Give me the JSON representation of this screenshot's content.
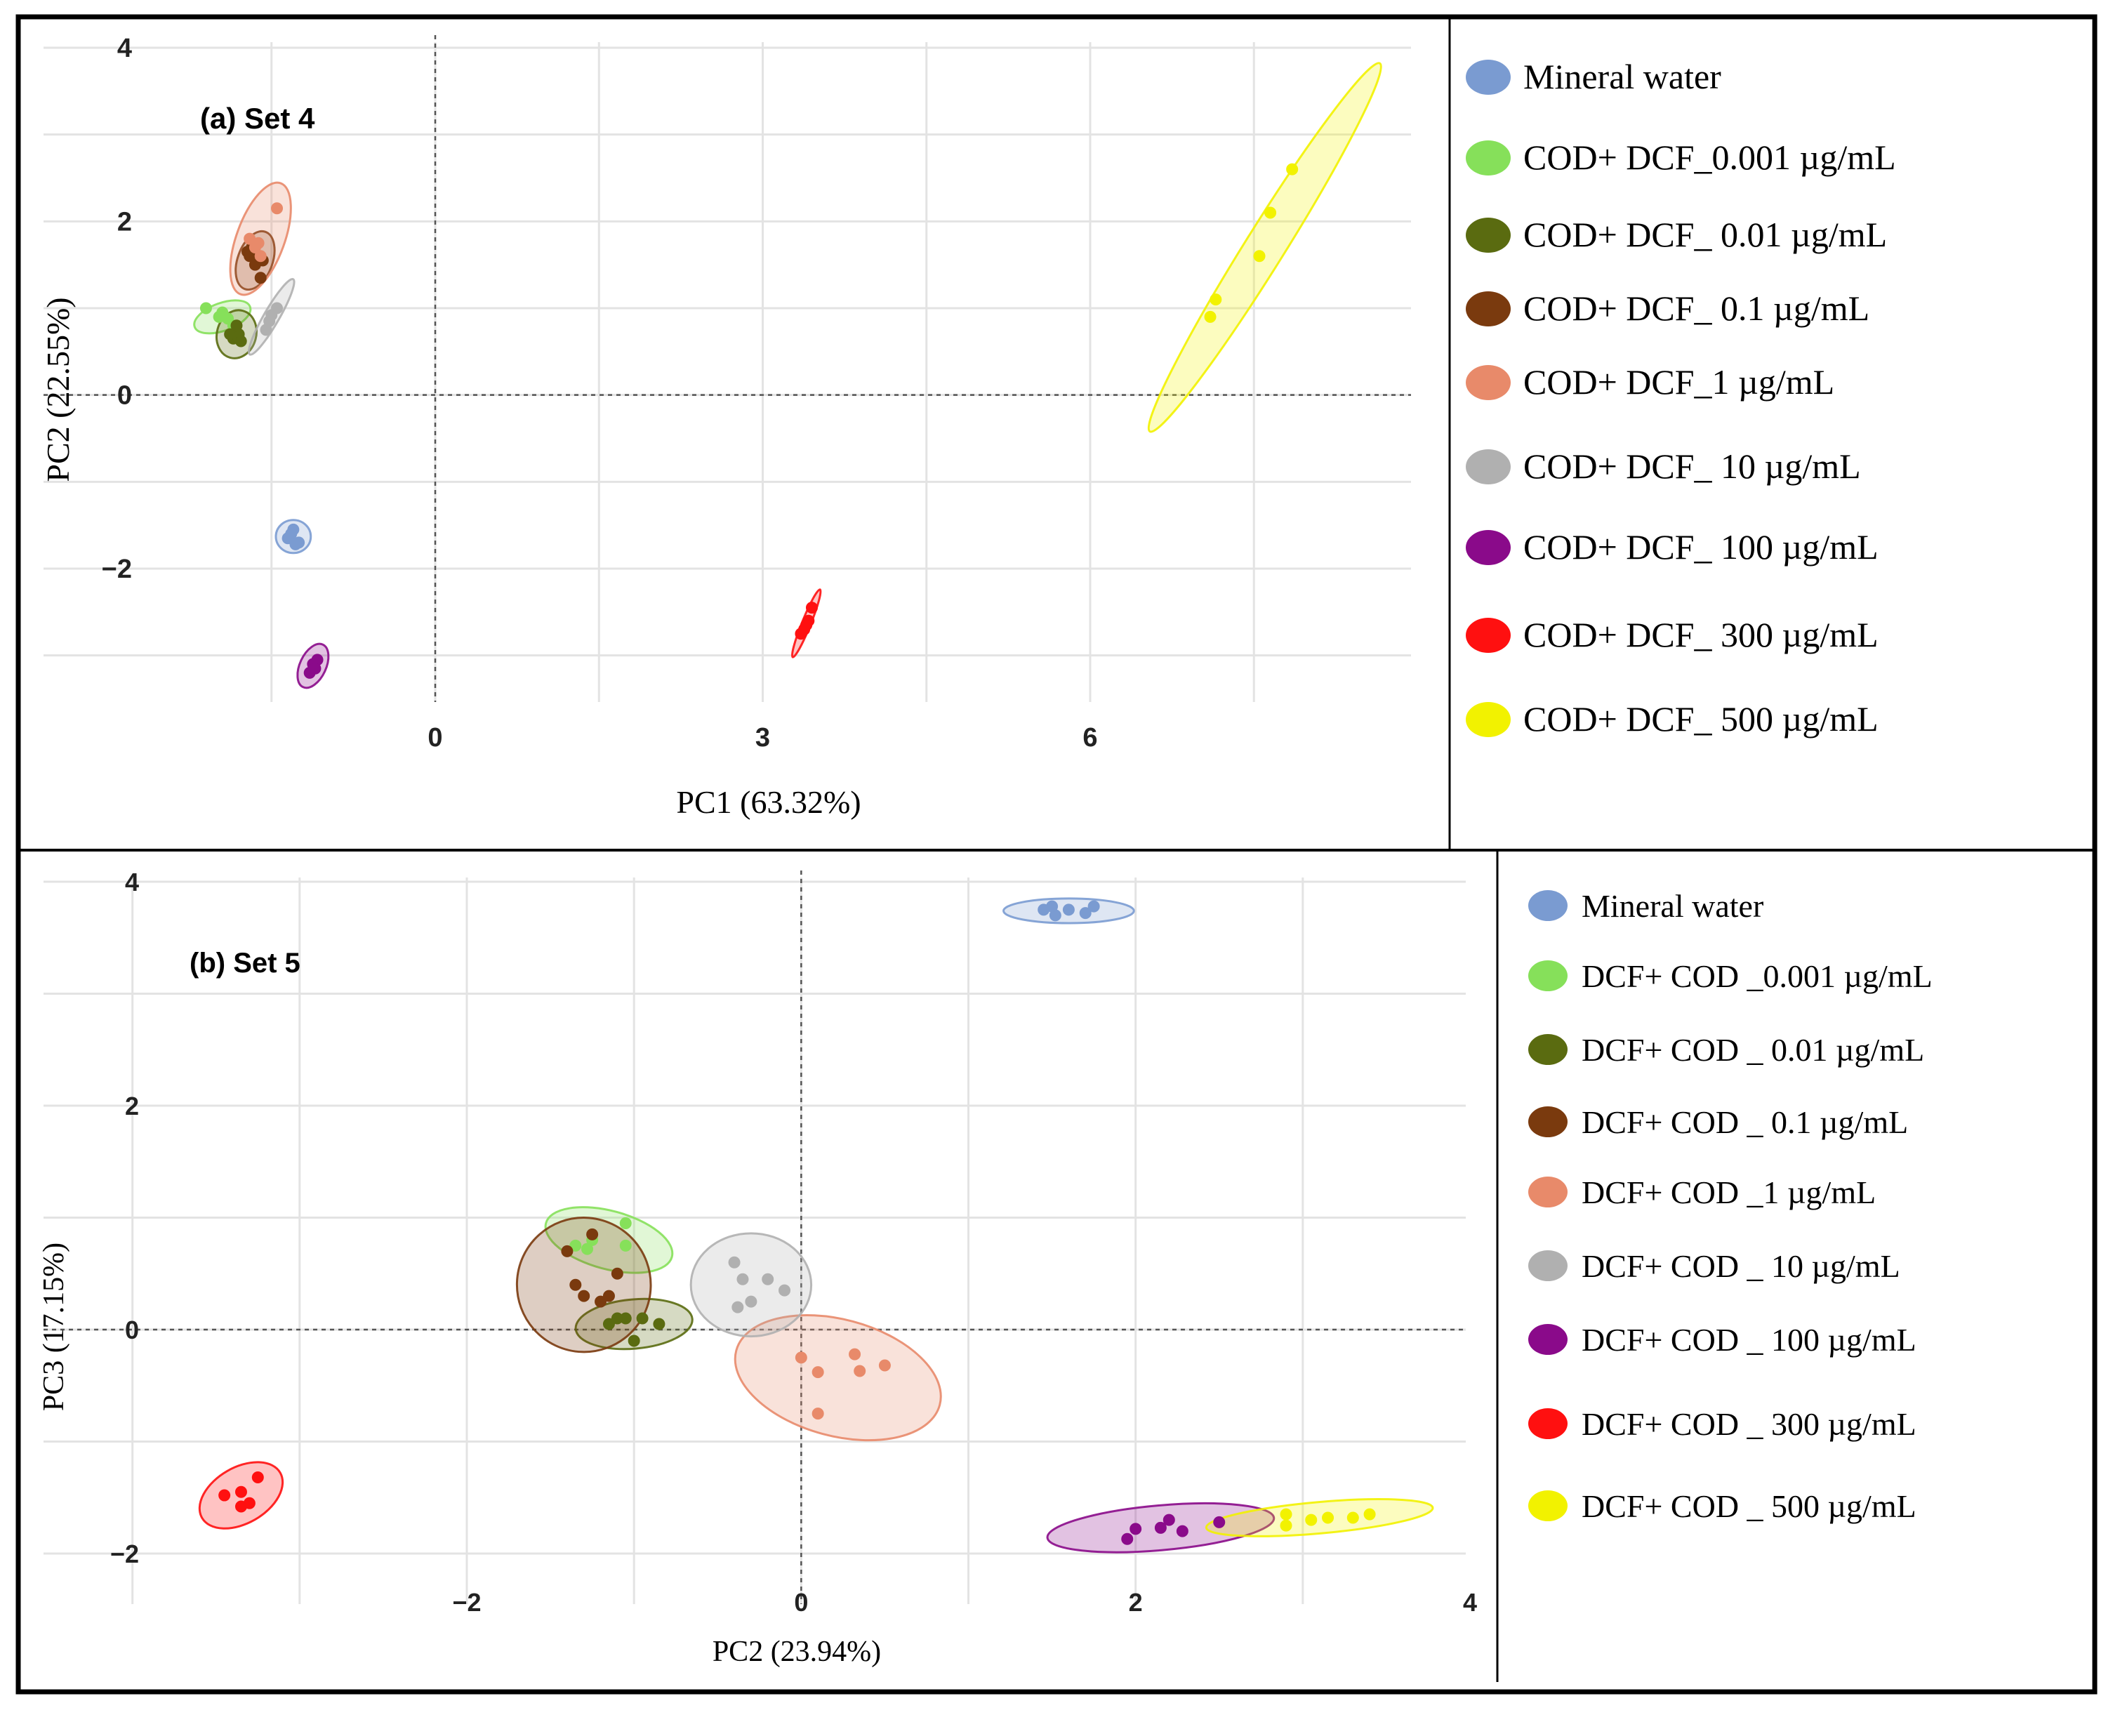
{
  "colors": {
    "mineral": "#7a9bd1",
    "c0001": "#86e05a",
    "c001": "#5a6b10",
    "c01": "#7a3a0e",
    "c1": "#e88a6a",
    "c10": "#b0b0b0",
    "c100": "#8a0a8a",
    "c300": "#ff1010",
    "c500": "#f2f200"
  },
  "chart_data": [
    {
      "type": "scatter",
      "panel_label": "(a) Set 4",
      "xlabel": "PC1 (63.32%)",
      "ylabel": "PC2 (22.55%)",
      "xlim": [
        -1.75,
        9.0
      ],
      "ylim": [
        -3.0,
        4.1
      ],
      "x_ticks": [
        0,
        3,
        6
      ],
      "x_tick_labels": [
        "0",
        "3",
        "6"
      ],
      "y_ticks": [
        -2,
        0,
        2,
        4
      ],
      "y_tick_labels": [
        "−2",
        "0",
        "2",
        "4"
      ],
      "legend": [
        "Mineral water",
        "COD+ DCF_0.001 µg/mL",
        "COD+ DCF_ 0.01 µg/mL",
        "COD+ DCF_ 0.1 µg/mL",
        "COD+ DCF_1 µg/mL",
        "COD+ DCF_ 10 µg/mL",
        "COD+ DCF_ 100 µg/mL",
        "COD+ DCF_ 300 µg/mL",
        "COD+ DCF_ 500 µg/mL"
      ],
      "series": [
        {
          "name": "Mineral water",
          "color_key": "mineral",
          "x": [
            -1.35,
            -1.3,
            -1.25,
            -1.32,
            -1.28
          ],
          "y": [
            -1.65,
            -1.55,
            -1.7,
            -1.6,
            -1.72
          ],
          "ellipse": {
            "cx": -1.3,
            "cy": -1.63,
            "rx": 0.16,
            "ry": 0.19,
            "angle": 0
          }
        },
        {
          "name": "COD+ DCF_0.001",
          "color_key": "c0001",
          "x": [
            -2.1,
            -1.95,
            -1.85,
            -1.9,
            -1.98
          ],
          "y": [
            1.0,
            0.95,
            0.8,
            0.88,
            0.9
          ],
          "ellipse": {
            "cx": -1.95,
            "cy": 0.9,
            "rx": 0.27,
            "ry": 0.16,
            "angle": -20
          }
        },
        {
          "name": "COD+ DCF_ 0.01",
          "color_key": "c001",
          "x": [
            -1.85,
            -1.8,
            -1.82,
            -1.78,
            -1.88
          ],
          "y": [
            0.65,
            0.7,
            0.8,
            0.62,
            0.7
          ],
          "ellipse": {
            "cx": -1.82,
            "cy": 0.7,
            "rx": 0.18,
            "ry": 0.28,
            "angle": 15
          }
        },
        {
          "name": "COD+ DCF_ 0.1",
          "color_key": "c01",
          "x": [
            -1.7,
            -1.65,
            -1.6,
            -1.68,
            -1.58,
            -1.72
          ],
          "y": [
            1.6,
            1.5,
            1.35,
            1.7,
            1.55,
            1.65
          ],
          "ellipse": {
            "cx": -1.65,
            "cy": 1.55,
            "rx": 0.16,
            "ry": 0.35,
            "angle": 20
          }
        },
        {
          "name": "COD+ DCF_1",
          "color_key": "c1",
          "x": [
            -1.45,
            -1.65,
            -1.7,
            -1.6,
            -1.62
          ],
          "y": [
            2.15,
            1.7,
            1.8,
            1.6,
            1.75
          ],
          "ellipse": {
            "cx": -1.6,
            "cy": 1.8,
            "rx": 0.22,
            "ry": 0.68,
            "angle": 20
          }
        },
        {
          "name": "COD+ DCF_ 10",
          "color_key": "c10",
          "x": [
            -1.45,
            -1.5,
            -1.52,
            -1.55
          ],
          "y": [
            1.0,
            0.92,
            0.85,
            0.75
          ],
          "ellipse": {
            "cx": -1.5,
            "cy": 0.9,
            "rx": 0.07,
            "ry": 0.5,
            "angle": 30
          }
        },
        {
          "name": "COD+ DCF_ 100",
          "color_key": "c100",
          "x": [
            -1.12,
            -1.08,
            -1.15,
            -1.1
          ],
          "y": [
            -3.1,
            -3.05,
            -3.2,
            -3.15
          ],
          "ellipse": {
            "cx": -1.12,
            "cy": -3.12,
            "rx": 0.12,
            "ry": 0.27,
            "angle": 25
          }
        },
        {
          "name": "COD+ DCF_ 300",
          "color_key": "c300",
          "x": [
            3.35,
            3.38,
            3.42,
            3.45,
            3.4
          ],
          "y": [
            -2.75,
            -2.7,
            -2.6,
            -2.45,
            -2.65
          ],
          "ellipse": {
            "cx": 3.4,
            "cy": -2.63,
            "rx": 0.04,
            "ry": 0.42,
            "angle": 22
          }
        },
        {
          "name": "COD+ DCF_ 500",
          "color_key": "c500",
          "x": [
            7.1,
            7.15,
            7.55,
            7.65,
            7.85
          ],
          "y": [
            0.9,
            1.1,
            1.6,
            2.1,
            2.6
          ],
          "ellipse": {
            "cx": 7.6,
            "cy": 1.7,
            "rx": 0.18,
            "ry": 2.5,
            "angle": 32
          }
        }
      ]
    },
    {
      "type": "scatter",
      "panel_label": "(b) Set 5",
      "xlabel": "PC2 (23.94%)",
      "ylabel": "PC3 (17.15%)",
      "xlim": [
        -4.0,
        4.0
      ],
      "ylim": [
        -2.1,
        4.0
      ],
      "x_ticks": [
        -2,
        0,
        2,
        4
      ],
      "x_tick_labels": [
        "−2",
        "0",
        "2",
        "4"
      ],
      "y_ticks": [
        -2,
        0,
        2,
        4
      ],
      "y_tick_labels": [
        "−2",
        "0",
        "2",
        "4"
      ],
      "legend": [
        "Mineral water",
        "DCF+ COD _0.001 µg/mL",
        "DCF+ COD _ 0.01 µg/mL",
        "DCF+ COD _ 0.1 µg/mL",
        "DCF+ COD _1 µg/mL",
        "DCF+ COD _ 10 µg/mL",
        "DCF+ COD _ 100 µg/mL",
        "DCF+ COD _ 300 µg/mL",
        "DCF+ COD _ 500 µg/mL"
      ],
      "series": [
        {
          "name": "Mineral water",
          "color_key": "mineral",
          "x": [
            1.45,
            1.52,
            1.6,
            1.7,
            1.75,
            1.5
          ],
          "y": [
            3.75,
            3.7,
            3.75,
            3.72,
            3.78,
            3.78
          ],
          "ellipse": {
            "cx": 1.6,
            "cy": 3.74,
            "rx": 0.39,
            "ry": 0.11,
            "angle": 0
          }
        },
        {
          "name": "DCF+ COD _0.001",
          "color_key": "c0001",
          "x": [
            -1.35,
            -1.25,
            -1.05,
            -1.05,
            -1.28
          ],
          "y": [
            0.75,
            0.8,
            0.95,
            0.75,
            0.72
          ],
          "ellipse": {
            "cx": -1.15,
            "cy": 0.8,
            "rx": 0.39,
            "ry": 0.26,
            "angle": 15
          }
        },
        {
          "name": "DCF+ COD _ 0.01",
          "color_key": "c001",
          "x": [
            -1.15,
            -1.05,
            -0.95,
            -0.85,
            -1.1,
            -1.0
          ],
          "y": [
            0.05,
            0.1,
            0.1,
            0.05,
            0.1,
            -0.1
          ],
          "ellipse": {
            "cx": -1.0,
            "cy": 0.05,
            "rx": 0.35,
            "ry": 0.22,
            "angle": -5
          }
        },
        {
          "name": "DCF+ COD _ 0.1",
          "color_key": "c01",
          "x": [
            -1.4,
            -1.35,
            -1.2,
            -1.15,
            -1.3,
            -1.1,
            -1.25
          ],
          "y": [
            0.7,
            0.4,
            0.25,
            0.3,
            0.3,
            0.5,
            0.85
          ],
          "ellipse": {
            "cx": -1.3,
            "cy": 0.4,
            "rx": 0.4,
            "ry": 0.6,
            "angle": -20
          }
        },
        {
          "name": "DCF+ COD _1",
          "color_key": "c1",
          "x": [
            0.0,
            0.1,
            0.32,
            0.35,
            0.5,
            0.1
          ],
          "y": [
            -0.25,
            -0.38,
            -0.22,
            -0.37,
            -0.32,
            -0.75
          ],
          "ellipse": {
            "cx": 0.22,
            "cy": -0.43,
            "rx": 0.63,
            "ry": 0.52,
            "angle": 15
          }
        },
        {
          "name": "DCF+ COD _ 10",
          "color_key": "c10",
          "x": [
            -0.4,
            -0.35,
            -0.3,
            -0.2,
            -0.1,
            -0.38
          ],
          "y": [
            0.6,
            0.45,
            0.25,
            0.45,
            0.35,
            0.2
          ],
          "ellipse": {
            "cx": -0.3,
            "cy": 0.4,
            "rx": 0.36,
            "ry": 0.46,
            "angle": 0
          }
        },
        {
          "name": "DCF+ COD _ 100",
          "color_key": "c100",
          "x": [
            1.95,
            2.0,
            2.15,
            2.2,
            2.28,
            2.5
          ],
          "y": [
            -1.87,
            -1.78,
            -1.77,
            -1.7,
            -1.8,
            -1.72
          ],
          "ellipse": {
            "cx": 2.15,
            "cy": -1.77,
            "rx": 0.68,
            "ry": 0.2,
            "angle": -5
          }
        },
        {
          "name": "DCF+ COD _ 300",
          "color_key": "c300",
          "x": [
            -3.45,
            -3.35,
            -3.35,
            -3.25,
            -3.3
          ],
          "y": [
            -1.48,
            -1.45,
            -1.58,
            -1.32,
            -1.55
          ],
          "ellipse": {
            "cx": -3.35,
            "cy": -1.48,
            "rx": 0.27,
            "ry": 0.25,
            "angle": -30
          }
        },
        {
          "name": "DCF+ COD _ 500",
          "color_key": "c500",
          "x": [
            2.9,
            2.9,
            3.05,
            3.15,
            3.3,
            3.4
          ],
          "y": [
            -1.65,
            -1.75,
            -1.7,
            -1.68,
            -1.68,
            -1.65
          ],
          "ellipse": {
            "cx": 3.1,
            "cy": -1.68,
            "rx": 0.68,
            "ry": 0.14,
            "angle": -5
          }
        }
      ]
    }
  ]
}
